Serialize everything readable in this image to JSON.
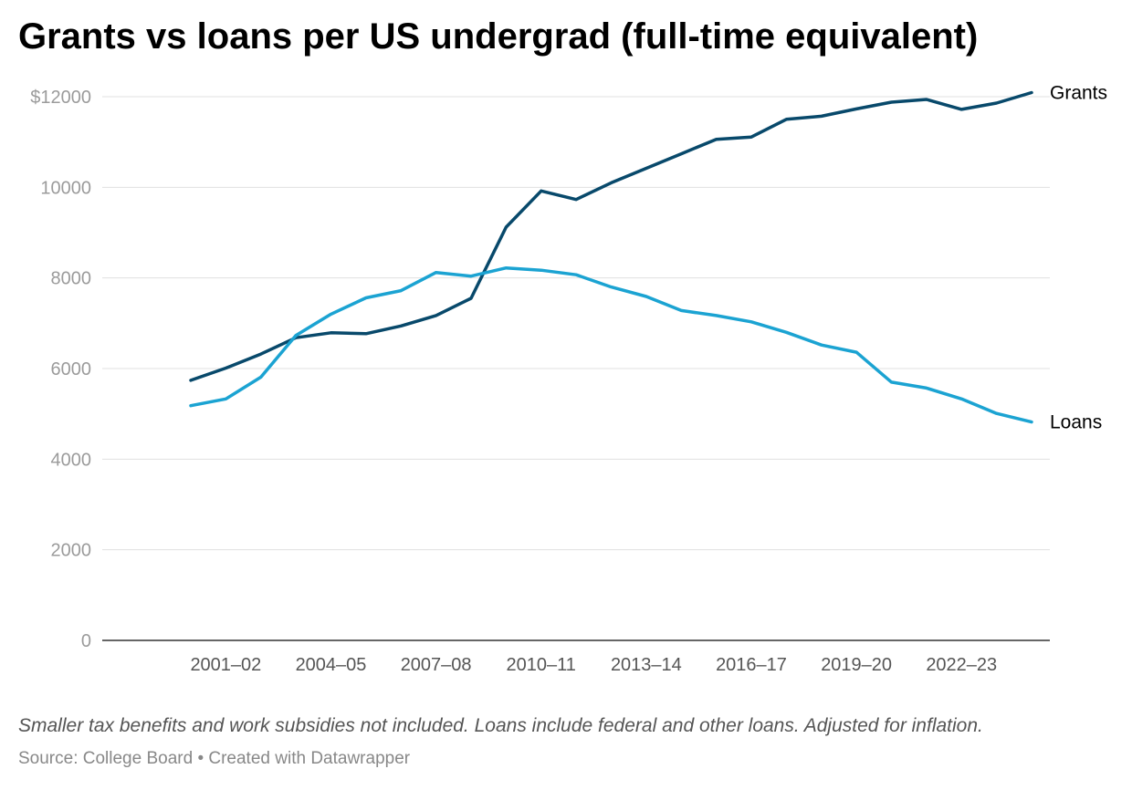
{
  "title": "Grants vs loans per US undergrad (full-time equivalent)",
  "notes": "Smaller tax benefits and work subsidies not included. Loans include federal and other loans. Adjusted for inflation.",
  "source": "Source: College Board • Created with Datawrapper",
  "chart_data": {
    "type": "line",
    "title": "Grants vs loans per US undergrad (full-time equivalent)",
    "x": [
      "2000–01",
      "2001–02",
      "2002–03",
      "2003–04",
      "2004–05",
      "2005–06",
      "2006–07",
      "2007–08",
      "2008–09",
      "2009–10",
      "2010–11",
      "2011–12",
      "2012–13",
      "2013–14",
      "2014–15",
      "2015–16",
      "2016–17",
      "2017–18",
      "2018–19",
      "2019–20",
      "2020–21",
      "2021–22",
      "2022–23",
      "2023–24",
      "2024–25"
    ],
    "x_tick_labels": [
      "2001–02",
      "2004–05",
      "2007–08",
      "2010–11",
      "2013–14",
      "2016–17",
      "2019–20",
      "2022–23"
    ],
    "y_tick_labels": [
      "$12000",
      "10000",
      "8000",
      "6000",
      "4000",
      "2000",
      "0"
    ],
    "y_ticks": [
      12000,
      10000,
      8000,
      6000,
      4000,
      2000,
      0
    ],
    "ylim": [
      0,
      12000
    ],
    "grid": true,
    "legend": "direct labels at line ends",
    "series": [
      {
        "name": "Grants",
        "color": "#08496b",
        "values": [
          5740,
          6010,
          6320,
          6680,
          6790,
          6770,
          6940,
          7170,
          7550,
          9120,
          9920,
          9730,
          10100,
          10420,
          10740,
          11060,
          11110,
          11500,
          11570,
          11730,
          11880,
          11940,
          11720,
          11860,
          12090
        ]
      },
      {
        "name": "Loans",
        "color": "#1ba3d2",
        "values": [
          5180,
          5330,
          5810,
          6730,
          7200,
          7560,
          7720,
          8120,
          8040,
          8220,
          8170,
          8070,
          7800,
          7590,
          7280,
          7170,
          7030,
          6800,
          6520,
          6360,
          5700,
          5570,
          5330,
          5010,
          4820
        ]
      }
    ]
  }
}
